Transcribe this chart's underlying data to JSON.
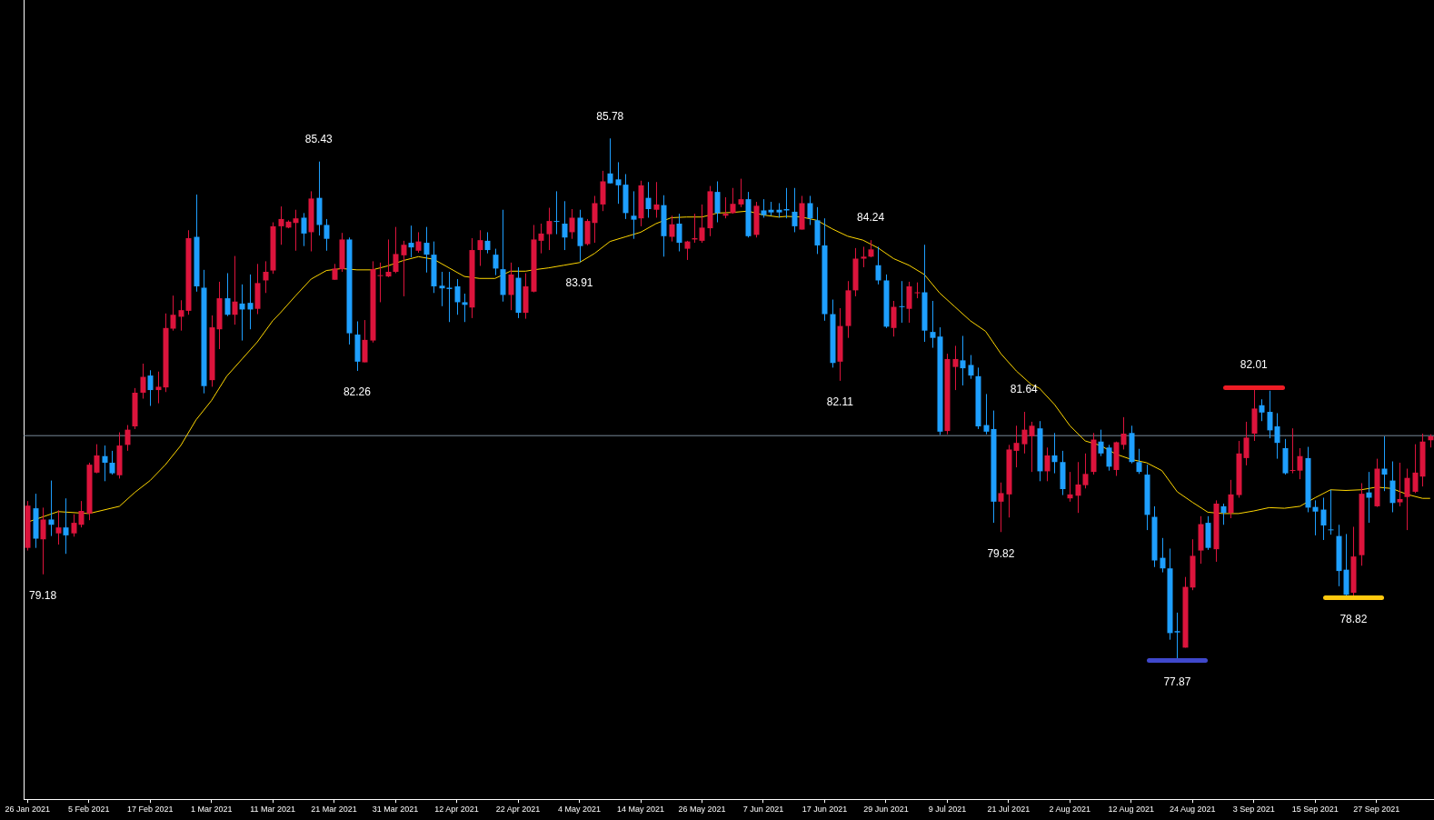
{
  "chart_data": {
    "type": "candlestick",
    "categories": [
      "26 Jan 2021",
      null,
      null,
      null,
      null,
      null,
      null,
      null,
      "5 Feb 2021",
      null,
      null,
      null,
      null,
      null,
      null,
      null,
      "17 Feb 2021",
      null,
      null,
      null,
      null,
      null,
      null,
      null,
      "1 Mar 2021",
      null,
      null,
      null,
      null,
      null,
      null,
      null,
      "11 Mar 2021",
      null,
      null,
      null,
      null,
      null,
      null,
      null,
      "21 Mar 2021",
      null,
      null,
      null,
      null,
      null,
      null,
      null,
      "31 Mar 2021",
      null,
      null,
      null,
      null,
      null,
      null,
      null,
      "12 Apr 2021",
      null,
      null,
      null,
      null,
      null,
      null,
      null,
      "22 Apr 2021",
      null,
      null,
      null,
      null,
      null,
      null,
      null,
      "4 May 2021",
      null,
      null,
      null,
      null,
      null,
      null,
      null,
      "14 May 2021",
      null,
      null,
      null,
      null,
      null,
      null,
      null,
      "26 May 2021",
      null,
      null,
      null,
      null,
      null,
      null,
      null,
      "7 Jun 2021",
      null,
      null,
      null,
      null,
      null,
      null,
      null,
      "17 Jun 2021",
      null,
      null,
      null,
      null,
      null,
      null,
      null,
      "29 Jun 2021",
      null,
      null,
      null,
      null,
      null,
      null,
      null,
      "9 Jul 2021",
      null,
      null,
      null,
      null,
      null,
      null,
      null,
      "21 Jul 2021",
      null,
      null,
      null,
      null,
      null,
      null,
      null,
      "2 Aug 2021",
      null,
      null,
      null,
      null,
      null,
      null,
      null,
      "12 Aug 2021",
      null,
      null,
      null,
      null,
      null,
      null,
      null,
      "24 Aug 2021",
      null,
      null,
      null,
      null,
      null,
      null,
      null,
      "3 Sep 2021",
      null,
      null,
      null,
      null,
      null,
      null,
      null,
      "15 Sep 2021",
      null,
      null,
      null,
      null,
      null,
      null,
      null,
      "27 Sep 2021",
      null,
      null,
      null,
      null,
      null,
      null,
      null
    ],
    "series": [
      {
        "type": "candlestick",
        "ohlc": [
          [
            79.58,
            80.29,
            79.54,
            80.22
          ],
          [
            80.18,
            80.4,
            79.58,
            79.72
          ],
          [
            79.71,
            80.19,
            79.18,
            80.01
          ],
          [
            80.01,
            80.6,
            79.76,
            79.93
          ],
          [
            79.8,
            80.15,
            79.63,
            79.89
          ],
          [
            79.89,
            80.33,
            79.49,
            79.77
          ],
          [
            79.8,
            80.09,
            79.75,
            79.96
          ],
          [
            79.93,
            80.29,
            79.89,
            80.14
          ],
          [
            80.1,
            80.87,
            80.0,
            80.84
          ],
          [
            80.72,
            81.15,
            80.71,
            80.98
          ],
          [
            80.97,
            81.13,
            80.59,
            80.87
          ],
          [
            80.87,
            81.05,
            80.69,
            80.71
          ],
          [
            80.68,
            81.33,
            80.63,
            81.13
          ],
          [
            81.14,
            81.44,
            81.05,
            81.37
          ],
          [
            81.42,
            82.0,
            81.38,
            81.93
          ],
          [
            81.93,
            82.37,
            81.84,
            82.17
          ],
          [
            82.19,
            82.27,
            81.73,
            81.97
          ],
          [
            81.97,
            82.25,
            81.77,
            82.02
          ],
          [
            82.01,
            83.13,
            81.94,
            82.91
          ],
          [
            82.9,
            83.4,
            82.87,
            83.11
          ],
          [
            83.08,
            83.33,
            82.87,
            83.18
          ],
          [
            83.17,
            84.39,
            83.11,
            84.27
          ],
          [
            84.29,
            84.93,
            83.46,
            83.54
          ],
          [
            83.52,
            83.79,
            81.92,
            82.03
          ],
          [
            82.12,
            83.1,
            82.02,
            82.92
          ],
          [
            82.89,
            83.61,
            82.59,
            83.36
          ],
          [
            83.36,
            83.74,
            83.09,
            83.11
          ],
          [
            83.11,
            84.0,
            82.96,
            83.31
          ],
          [
            83.28,
            83.57,
            82.72,
            83.19
          ],
          [
            83.29,
            83.72,
            82.89,
            83.19
          ],
          [
            83.2,
            83.88,
            83.12,
            83.59
          ],
          [
            83.63,
            83.92,
            83.44,
            83.76
          ],
          [
            83.78,
            84.51,
            83.73,
            84.45
          ],
          [
            84.45,
            84.75,
            84.17,
            84.56
          ],
          [
            84.43,
            84.54,
            84.42,
            84.52
          ],
          [
            84.5,
            84.7,
            84.08,
            84.57
          ],
          [
            84.58,
            84.65,
            84.15,
            84.34
          ],
          [
            84.36,
            84.98,
            84.07,
            84.87
          ],
          [
            84.88,
            85.43,
            84.31,
            84.47
          ],
          [
            84.47,
            84.56,
            84.08,
            84.26
          ],
          [
            83.64,
            83.88,
            83.64,
            83.81
          ],
          [
            83.8,
            84.35,
            83.76,
            84.25
          ],
          [
            84.25,
            84.28,
            82.66,
            82.83
          ],
          [
            82.81,
            83.01,
            82.26,
            82.4
          ],
          [
            82.39,
            83.03,
            82.39,
            82.73
          ],
          [
            82.72,
            83.92,
            82.69,
            83.8
          ],
          [
            83.7,
            83.9,
            83.3,
            83.71
          ],
          [
            83.69,
            84.25,
            83.68,
            83.76
          ],
          [
            83.76,
            84.44,
            83.74,
            84.03
          ],
          [
            84.01,
            84.23,
            83.39,
            84.17
          ],
          [
            84.2,
            84.46,
            83.98,
            84.13
          ],
          [
            84.08,
            84.36,
            84.05,
            84.22
          ],
          [
            84.2,
            84.44,
            83.75,
            84.02
          ],
          [
            84.02,
            84.22,
            83.44,
            83.54
          ],
          [
            83.55,
            83.76,
            83.24,
            83.51
          ],
          [
            83.52,
            83.76,
            83.0,
            83.5
          ],
          [
            83.54,
            83.65,
            83.11,
            83.3
          ],
          [
            83.3,
            83.43,
            83.0,
            83.26
          ],
          [
            83.22,
            84.27,
            83.06,
            84.09
          ],
          [
            84.09,
            84.39,
            83.85,
            84.24
          ],
          [
            84.23,
            84.36,
            84.04,
            84.09
          ],
          [
            84.02,
            84.11,
            83.71,
            83.81
          ],
          [
            83.8,
            84.7,
            83.31,
            83.41
          ],
          [
            83.41,
            83.9,
            83.18,
            83.72
          ],
          [
            83.67,
            83.83,
            83.06,
            83.14
          ],
          [
            83.14,
            83.74,
            83.05,
            83.54
          ],
          [
            83.46,
            84.47,
            83.45,
            84.25
          ],
          [
            84.23,
            84.49,
            84.04,
            84.34
          ],
          [
            84.33,
            84.73,
            84.09,
            84.53
          ],
          [
            84.53,
            84.98,
            84.33,
            84.52
          ],
          [
            84.49,
            84.83,
            84.09,
            84.28
          ],
          [
            84.36,
            84.71,
            84.26,
            84.58
          ],
          [
            84.58,
            84.7,
            83.91,
            84.15
          ],
          [
            84.18,
            84.56,
            84.16,
            84.53
          ],
          [
            84.5,
            84.91,
            84.2,
            84.8
          ],
          [
            84.78,
            85.29,
            84.68,
            85.13
          ],
          [
            85.25,
            85.78,
            85.1,
            85.1
          ],
          [
            85.16,
            85.42,
            84.79,
            85.07
          ],
          [
            85.08,
            85.24,
            84.56,
            84.65
          ],
          [
            84.61,
            84.98,
            84.26,
            84.55
          ],
          [
            84.57,
            85.14,
            84.45,
            85.07
          ],
          [
            84.88,
            85.12,
            84.58,
            84.71
          ],
          [
            84.7,
            85.12,
            84.58,
            84.78
          ],
          [
            84.77,
            84.92,
            83.99,
            84.3
          ],
          [
            84.29,
            84.61,
            84.22,
            84.48
          ],
          [
            84.49,
            84.64,
            84.07,
            84.2
          ],
          [
            84.11,
            84.23,
            83.94,
            84.22
          ],
          [
            84.25,
            84.64,
            84.2,
            84.27
          ],
          [
            84.23,
            84.78,
            84.2,
            84.43
          ],
          [
            84.42,
            85.06,
            84.3,
            84.98
          ],
          [
            84.97,
            85.13,
            84.51,
            84.65
          ],
          [
            84.61,
            84.89,
            84.57,
            84.64
          ],
          [
            84.65,
            85.03,
            84.64,
            84.79
          ],
          [
            84.78,
            85.17,
            84.74,
            84.86
          ],
          [
            84.86,
            84.97,
            84.28,
            84.3
          ],
          [
            84.32,
            84.82,
            84.28,
            84.76
          ],
          [
            84.69,
            84.86,
            84.58,
            84.62
          ],
          [
            84.7,
            84.82,
            84.61,
            84.66
          ],
          [
            84.7,
            84.8,
            84.58,
            84.66
          ],
          [
            84.71,
            85.03,
            84.57,
            84.69
          ],
          [
            84.67,
            85.03,
            84.36,
            84.45
          ],
          [
            84.4,
            84.91,
            84.4,
            84.8
          ],
          [
            84.8,
            84.91,
            84.47,
            84.57
          ],
          [
            84.54,
            84.74,
            84.03,
            84.16
          ],
          [
            84.16,
            84.57,
            83.02,
            83.12
          ],
          [
            83.12,
            83.34,
            82.31,
            82.38
          ],
          [
            82.4,
            83.21,
            82.11,
            82.94
          ],
          [
            82.94,
            83.62,
            82.76,
            83.48
          ],
          [
            83.48,
            84.12,
            83.39,
            83.96
          ],
          [
            83.96,
            84.14,
            83.83,
            83.99
          ],
          [
            83.99,
            84.24,
            83.98,
            84.1
          ],
          [
            83.86,
            84.14,
            83.57,
            83.63
          ],
          [
            83.63,
            83.72,
            82.91,
            82.93
          ],
          [
            82.91,
            83.32,
            82.78,
            83.23
          ],
          [
            83.24,
            83.62,
            82.99,
            83.23
          ],
          [
            83.2,
            83.61,
            82.99,
            83.54
          ],
          [
            83.44,
            83.6,
            83.36,
            83.45
          ],
          [
            83.45,
            84.17,
            82.7,
            82.87
          ],
          [
            82.85,
            83.32,
            82.61,
            82.76
          ],
          [
            82.78,
            82.92,
            81.29,
            81.34
          ],
          [
            81.35,
            82.52,
            81.3,
            82.44
          ],
          [
            82.32,
            82.64,
            81.97,
            82.44
          ],
          [
            82.42,
            82.79,
            82.04,
            82.3
          ],
          [
            82.35,
            82.5,
            82.14,
            82.19
          ],
          [
            82.18,
            82.31,
            81.38,
            81.42
          ],
          [
            81.44,
            81.91,
            81.3,
            81.34
          ],
          [
            81.38,
            81.66,
            79.96,
            80.28
          ],
          [
            80.28,
            80.57,
            79.82,
            80.41
          ],
          [
            80.39,
            81.14,
            80.04,
            81.07
          ],
          [
            81.05,
            81.43,
            80.8,
            81.17
          ],
          [
            81.15,
            81.64,
            81.01,
            81.37
          ],
          [
            81.27,
            81.49,
            80.73,
            81.43
          ],
          [
            81.39,
            81.5,
            80.59,
            80.74
          ],
          [
            80.74,
            81.1,
            80.59,
            80.98
          ],
          [
            80.98,
            81.32,
            80.71,
            80.88
          ],
          [
            80.88,
            81.05,
            80.38,
            80.47
          ],
          [
            80.33,
            80.73,
            80.28,
            80.39
          ],
          [
            80.37,
            80.88,
            80.11,
            80.54
          ],
          [
            80.53,
            81.01,
            80.48,
            80.7
          ],
          [
            80.73,
            81.32,
            80.69,
            81.22
          ],
          [
            81.19,
            81.37,
            80.97,
            81.01
          ],
          [
            81.1,
            81.14,
            80.75,
            80.81
          ],
          [
            80.76,
            81.19,
            80.67,
            81.18
          ],
          [
            81.14,
            81.56,
            81.07,
            81.31
          ],
          [
            81.32,
            81.43,
            80.86,
            80.88
          ],
          [
            80.88,
            81.08,
            80.7,
            80.73
          ],
          [
            80.69,
            80.84,
            79.85,
            80.08
          ],
          [
            80.05,
            80.21,
            79.29,
            79.39
          ],
          [
            79.43,
            79.73,
            79.21,
            79.27
          ],
          [
            79.27,
            79.57,
            78.19,
            78.29
          ],
          [
            78.32,
            78.6,
            77.87,
            78.3
          ],
          [
            78.07,
            79.14,
            78.07,
            78.99
          ],
          [
            78.98,
            79.71,
            78.94,
            79.46
          ],
          [
            79.54,
            80.06,
            79.34,
            79.94
          ],
          [
            79.96,
            80.06,
            79.55,
            79.58
          ],
          [
            79.56,
            80.3,
            79.37,
            80.25
          ],
          [
            80.21,
            80.25,
            79.93,
            80.11
          ],
          [
            80.11,
            80.61,
            80.03,
            80.39
          ],
          [
            80.38,
            81.2,
            80.34,
            81.01
          ],
          [
            80.94,
            81.49,
            80.83,
            81.25
          ],
          [
            81.31,
            82.01,
            81.2,
            81.69
          ],
          [
            81.74,
            81.83,
            81.5,
            81.63
          ],
          [
            81.64,
            81.96,
            81.24,
            81.36
          ],
          [
            81.42,
            81.62,
            80.93,
            81.17
          ],
          [
            81.09,
            81.23,
            80.69,
            80.71
          ],
          [
            80.75,
            81.39,
            80.71,
            80.76
          ],
          [
            80.75,
            81.09,
            80.62,
            80.97
          ],
          [
            80.94,
            81.11,
            80.12,
            80.19
          ],
          [
            80.2,
            80.3,
            79.77,
            80.13
          ],
          [
            80.16,
            80.34,
            79.7,
            79.92
          ],
          [
            79.86,
            80.46,
            79.78,
            79.85
          ],
          [
            79.76,
            79.93,
            79.0,
            79.23
          ],
          [
            79.25,
            79.79,
            78.84,
            78.87
          ],
          [
            78.9,
            79.9,
            78.82,
            79.45
          ],
          [
            79.47,
            80.56,
            79.31,
            80.4
          ],
          [
            80.42,
            80.73,
            79.96,
            80.34
          ],
          [
            80.21,
            80.93,
            80.2,
            80.78
          ],
          [
            80.78,
            81.27,
            80.44,
            80.69
          ],
          [
            80.6,
            80.89,
            80.12,
            80.26
          ],
          [
            80.27,
            80.87,
            80.21,
            80.32
          ],
          [
            80.35,
            80.78,
            79.85,
            80.64
          ],
          [
            80.43,
            81.15,
            80.41,
            80.72
          ],
          [
            80.66,
            81.31,
            80.51,
            81.19
          ],
          [
            81.21,
            81.3,
            81.1,
            81.27
          ]
        ],
        "colors": [
          "#dc143c",
          "#1e9fff",
          "#dc143c",
          "#1e9fff",
          "#dc143c",
          "#1e9fff",
          "#dc143c",
          "#dc143c",
          "#dc143c",
          "#dc143c",
          "#1e9fff",
          "#1e9fff",
          "#dc143c",
          "#dc143c",
          "#dc143c",
          "#dc143c",
          "#1e9fff",
          "#dc143c",
          "#dc143c",
          "#dc143c",
          "#dc143c",
          "#dc143c",
          "#1e9fff",
          "#1e9fff",
          "#dc143c",
          "#dc143c",
          "#1e9fff",
          "#dc143c",
          "#1e9fff",
          "#1e9fff",
          "#dc143c",
          "#dc143c",
          "#dc143c",
          "#dc143c",
          "#dc143c",
          "#dc143c",
          "#1e9fff",
          "#dc143c",
          "#1e9fff",
          "#1e9fff",
          "#dc143c",
          "#dc143c",
          "#1e9fff",
          "#1e9fff",
          "#dc143c",
          "#dc143c",
          "#dc143c",
          "#dc143c",
          "#dc143c",
          "#dc143c",
          "#1e9fff",
          "#dc143c",
          "#1e9fff",
          "#1e9fff",
          "#1e9fff",
          "#1e9fff",
          "#1e9fff",
          "#1e9fff",
          "#dc143c",
          "#dc143c",
          "#1e9fff",
          "#1e9fff",
          "#1e9fff",
          "#dc143c",
          "#1e9fff",
          "#dc143c",
          "#dc143c",
          "#dc143c",
          "#dc143c",
          "#1e9fff",
          "#1e9fff",
          "#dc143c",
          "#1e9fff",
          "#dc143c",
          "#dc143c",
          "#dc143c",
          "#1e9fff",
          "#1e9fff",
          "#1e9fff",
          "#1e9fff",
          "#dc143c",
          "#1e9fff",
          "#dc143c",
          "#1e9fff",
          "#dc143c",
          "#1e9fff",
          "#dc143c",
          "#dc143c",
          "#dc143c",
          "#dc143c",
          "#1e9fff",
          "#dc143c",
          "#dc143c",
          "#dc143c",
          "#1e9fff",
          "#dc143c",
          "#1e9fff",
          "#1e9fff",
          "#1e9fff",
          "#1e9fff",
          "#1e9fff",
          "#dc143c",
          "#1e9fff",
          "#1e9fff",
          "#1e9fff",
          "#1e9fff",
          "#dc143c",
          "#dc143c",
          "#dc143c",
          "#dc143c",
          "#dc143c",
          "#1e9fff",
          "#1e9fff",
          "#dc143c",
          "#1e9fff",
          "#dc143c",
          "#dc143c",
          "#1e9fff",
          "#1e9fff",
          "#1e9fff",
          "#dc143c",
          "#dc143c",
          "#1e9fff",
          "#1e9fff",
          "#1e9fff",
          "#1e9fff",
          "#1e9fff",
          "#dc143c",
          "#dc143c",
          "#dc143c",
          "#dc143c",
          "#dc143c",
          "#1e9fff",
          "#dc143c",
          "#1e9fff",
          "#1e9fff",
          "#dc143c",
          "#dc143c",
          "#dc143c",
          "#dc143c",
          "#1e9fff",
          "#1e9fff",
          "#dc143c",
          "#dc143c",
          "#1e9fff",
          "#1e9fff",
          "#1e9fff",
          "#1e9fff",
          "#1e9fff",
          "#1e9fff",
          "#1e9fff",
          "#dc143c",
          "#dc143c",
          "#dc143c",
          "#1e9fff",
          "#dc143c",
          "#1e9fff",
          "#dc143c",
          "#dc143c",
          "#dc143c",
          "#dc143c",
          "#1e9fff",
          "#1e9fff",
          "#1e9fff",
          "#1e9fff",
          "#dc143c",
          "#dc143c",
          "#1e9fff",
          "#1e9fff",
          "#1e9fff",
          "#1e9fff",
          "#1e9fff",
          "#1e9fff",
          "#dc143c",
          "#dc143c",
          "#1e9fff",
          "#dc143c",
          "#1e9fff",
          "#1e9fff",
          "#dc143c",
          "#dc143c",
          "#dc143c",
          "#dc143c",
          "#dc143c"
        ]
      },
      {
        "type": "line",
        "color": "#ffd700",
        "values": [
          79.97,
          null,
          null,
          null,
          80.13,
          null,
          null,
          null,
          80.1,
          null,
          null,
          null,
          80.21,
          null,
          80.42,
          null,
          80.6,
          null,
          80.84,
          null,
          81.13,
          null,
          81.52,
          null,
          81.81,
          null,
          82.18,
          null,
          82.44,
          null,
          82.7,
          null,
          83.02,
          83.14,
          null,
          83.4,
          null,
          83.65,
          null,
          83.78,
          null,
          83.81,
          null,
          83.79,
          null,
          83.79,
          null,
          83.85,
          null,
          83.93,
          null,
          83.99,
          null,
          83.95,
          null,
          83.82,
          null,
          83.69,
          null,
          83.66,
          null,
          83.66,
          null,
          83.77,
          null,
          83.77,
          83.79,
          null,
          83.82,
          null,
          83.86,
          null,
          83.9,
          null,
          84.04,
          null,
          84.22,
          null,
          84.29,
          null,
          84.36,
          null,
          84.49,
          null,
          84.58,
          null,
          84.59,
          null,
          84.59,
          null,
          84.65,
          null,
          84.66,
          null,
          84.68,
          null,
          84.62,
          null,
          84.59,
          84.6,
          null,
          84.59,
          null,
          84.54,
          null,
          84.41,
          null,
          84.3,
          null,
          84.24,
          null,
          84.12,
          null,
          83.96,
          null,
          83.86,
          null,
          83.72,
          null,
          83.44,
          null,
          83.23,
          null,
          83.02,
          null,
          82.86,
          null,
          82.52,
          null,
          82.26,
          null,
          82.05,
          82.0,
          null,
          81.75,
          null,
          81.43,
          null,
          81.2,
          null,
          81.13,
          null,
          81.0,
          null,
          80.92,
          null,
          80.87,
          null,
          80.75,
          null,
          80.43,
          null,
          80.27,
          null,
          80.12,
          null,
          80.1,
          null,
          80.1,
          null,
          80.14,
          null,
          80.19,
          null,
          80.18,
          null,
          80.21,
          null,
          80.34,
          null,
          80.46,
          null,
          80.45,
          null,
          80.46,
          null,
          80.5,
          null,
          80.48,
          null,
          80.39,
          null,
          80.33,
          80.33
        ]
      }
    ],
    "annotations": [
      {
        "text": "79.18",
        "y": 79.18
      },
      {
        "text": "85.43",
        "y": 85.43
      },
      {
        "text": "82.26",
        "y": 82.26
      },
      {
        "text": "85.78",
        "y": 85.78
      },
      {
        "text": "83.91",
        "y": 83.91
      },
      {
        "text": "84.24",
        "y": 84.24
      },
      {
        "text": "82.11",
        "y": 82.11
      },
      {
        "text": "81.64",
        "y": 81.64
      },
      {
        "text": "79.82",
        "y": 79.82
      },
      {
        "text": "82.01",
        "y": 82.01
      },
      {
        "text": "77.87",
        "y": 77.87
      },
      {
        "text": "78.82",
        "y": 78.82
      }
    ],
    "ref_lines": [
      {
        "axis": "y",
        "value": 81.28,
        "color": "#778899"
      }
    ]
  }
}
